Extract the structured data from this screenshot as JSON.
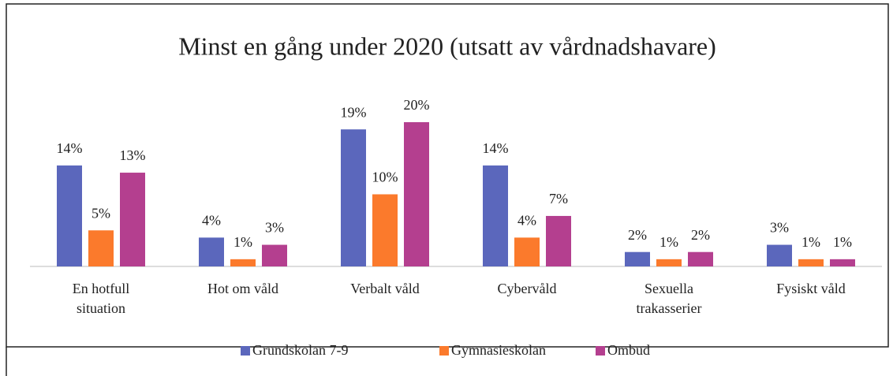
{
  "chart_data": {
    "type": "bar",
    "title": "Minst en gång under 2020 (utsatt av vårdnadshavare)",
    "categories": [
      [
        "En hotfull",
        "situation"
      ],
      [
        "Hot om våld"
      ],
      [
        "Verbalt våld"
      ],
      [
        "Cybervåld"
      ],
      [
        "Sexuella",
        "trakasserier"
      ],
      [
        "Fysiskt våld"
      ]
    ],
    "series": [
      {
        "name": "Grundskolan 7-9",
        "color": "#5b67bc",
        "values": [
          14,
          4,
          19,
          14,
          2,
          3
        ],
        "value_labels": [
          "14%",
          "4%",
          "19%",
          "14%",
          "2%",
          "3%"
        ]
      },
      {
        "name": "Gymnasieskolan",
        "color": "#fb7a2c",
        "values": [
          5,
          1,
          10,
          4,
          1,
          1
        ],
        "value_labels": [
          "5%",
          "1%",
          "10%",
          "4%",
          "1%",
          "1%"
        ]
      },
      {
        "name": "Ombud",
        "color": "#b43f8f",
        "values": [
          13,
          3,
          20,
          7,
          2,
          1
        ],
        "value_labels": [
          "13%",
          "3%",
          "20%",
          "7%",
          "2%",
          "1%"
        ]
      }
    ],
    "legend": "bottom"
  }
}
